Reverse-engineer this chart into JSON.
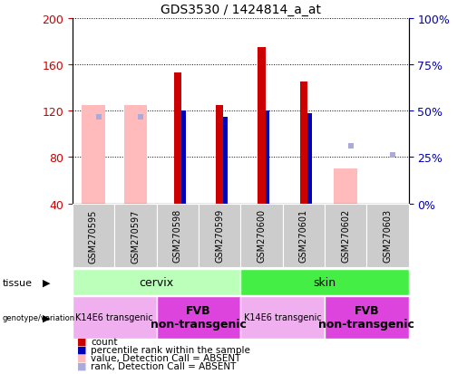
{
  "title": "GDS3530 / 1424814_a_at",
  "samples": [
    "GSM270595",
    "GSM270597",
    "GSM270598",
    "GSM270599",
    "GSM270600",
    "GSM270601",
    "GSM270602",
    "GSM270603"
  ],
  "ylim_left": [
    40,
    200
  ],
  "ylim_right": [
    0,
    100
  ],
  "yticks_left": [
    40,
    80,
    120,
    160,
    200
  ],
  "yticks_right": [
    0,
    25,
    50,
    75,
    100
  ],
  "count_values": [
    null,
    null,
    153,
    125,
    175,
    145,
    null,
    null
  ],
  "percentile_values": [
    null,
    null,
    120,
    115,
    120,
    118,
    null,
    null
  ],
  "absent_value_bars": [
    125,
    125,
    null,
    null,
    null,
    null,
    70,
    null
  ],
  "absent_rank_dots": [
    115,
    115,
    null,
    null,
    null,
    null,
    90,
    82
  ],
  "tissue": [
    {
      "label": "cervix",
      "start": 0,
      "end": 4
    },
    {
      "label": "skin",
      "start": 4,
      "end": 8
    }
  ],
  "genotype": [
    {
      "label": "K14E6 transgenic",
      "start": 0,
      "end": 2,
      "bold": false,
      "fontsize": 7
    },
    {
      "label": "FVB\nnon-transgenic",
      "start": 2,
      "end": 4,
      "bold": true,
      "fontsize": 9
    },
    {
      "label": "K14E6 transgenic",
      "start": 4,
      "end": 6,
      "bold": false,
      "fontsize": 7
    },
    {
      "label": "FVB\nnon-transgenic",
      "start": 6,
      "end": 8,
      "bold": true,
      "fontsize": 9
    }
  ],
  "colors": {
    "count_bar": "#cc0000",
    "percentile_bar": "#0000bb",
    "absent_value": "#ffbbbb",
    "absent_rank": "#aaaadd",
    "tissue_cervix": "#bbffbb",
    "tissue_skin": "#44ee44",
    "geno_light": "#f0b0f0",
    "geno_dark": "#dd44dd",
    "xticklabel_bg": "#cccccc",
    "left_axis_color": "#cc0000",
    "right_axis_color": "#0000bb"
  }
}
